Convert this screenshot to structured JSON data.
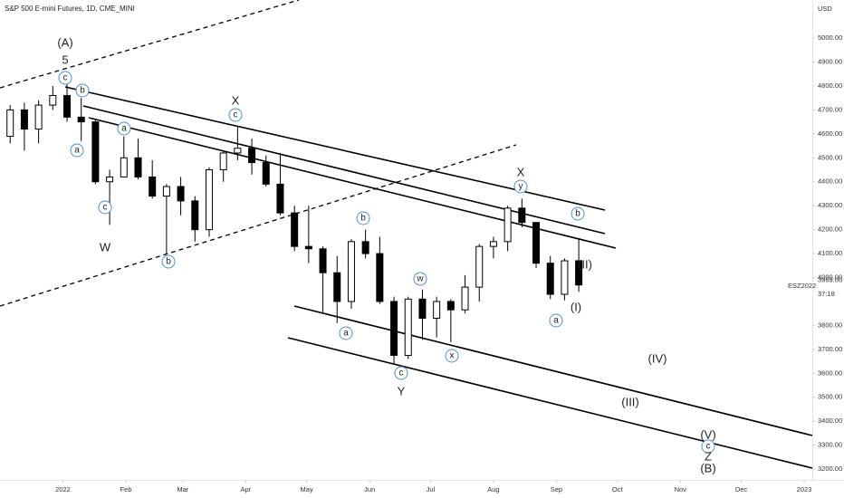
{
  "chart_data": {
    "type": "candlestick",
    "title": "S&P 500 E-mini Futures, 1D, CME_MINI",
    "currency": "USD",
    "symbol": "ESZ2022",
    "last_price": {
      "value": 3969,
      "label": "3969.00"
    },
    "countdown": "37:18",
    "grid": false,
    "up_color": "#ffffff",
    "down_color": "#000000",
    "wick_color": "#000000",
    "xlim": [
      "2021-12-01",
      "2023-01-05"
    ],
    "xticks": [
      {
        "value": "2022-01-01",
        "label": "2022"
      },
      {
        "value": "2022-02-01",
        "label": "Feb"
      },
      {
        "value": "2022-03-01",
        "label": "Mar"
      },
      {
        "value": "2022-04-01",
        "label": "Apr"
      },
      {
        "value": "2022-05-01",
        "label": "May"
      },
      {
        "value": "2022-06-01",
        "label": "Jun"
      },
      {
        "value": "2022-07-01",
        "label": "Jul"
      },
      {
        "value": "2022-08-01",
        "label": "Aug"
      },
      {
        "value": "2022-09-01",
        "label": "Sep"
      },
      {
        "value": "2022-10-01",
        "label": "Oct"
      },
      {
        "value": "2022-11-01",
        "label": "Nov"
      },
      {
        "value": "2022-12-01",
        "label": "Dec"
      },
      {
        "value": "2023-01-01",
        "label": "2023"
      }
    ],
    "ylim": [
      3155,
      5159
    ],
    "yticks": [
      {
        "value": 5000,
        "label": "5000.00"
      },
      {
        "value": 4900,
        "label": "4900.00"
      },
      {
        "value": 4800,
        "label": "4800.00"
      },
      {
        "value": 4700,
        "label": "4700.00"
      },
      {
        "value": 4600,
        "label": "4600.00"
      },
      {
        "value": 4500,
        "label": "4500.00"
      },
      {
        "value": 4400,
        "label": "4400.00"
      },
      {
        "value": 4300,
        "label": "4300.00"
      },
      {
        "value": 4200,
        "label": "4200.00"
      },
      {
        "value": 4100,
        "label": "4100.00"
      },
      {
        "value": 4000,
        "label": "4000.00"
      },
      {
        "value": 3800,
        "label": "3800.00"
      },
      {
        "value": 3700,
        "label": "3700.00"
      },
      {
        "value": 3600,
        "label": "3600.00"
      },
      {
        "value": 3500,
        "label": "3500.00"
      },
      {
        "value": 3400,
        "label": "3400.00"
      },
      {
        "value": 3300,
        "label": "3300.00"
      },
      {
        "value": 3200,
        "label": "3200.00"
      }
    ],
    "x": [
      "2021-12-06",
      "2021-12-13",
      "2021-12-20",
      "2021-12-27",
      "2022-01-03",
      "2022-01-10",
      "2022-01-17",
      "2022-01-24",
      "2022-01-31",
      "2022-02-07",
      "2022-02-14",
      "2022-02-21",
      "2022-02-28",
      "2022-03-07",
      "2022-03-14",
      "2022-03-21",
      "2022-03-28",
      "2022-04-04",
      "2022-04-11",
      "2022-04-18",
      "2022-04-25",
      "2022-05-02",
      "2022-05-09",
      "2022-05-16",
      "2022-05-23",
      "2022-05-30",
      "2022-06-06",
      "2022-06-13",
      "2022-06-20",
      "2022-06-27",
      "2022-07-04",
      "2022-07-11",
      "2022-07-18",
      "2022-07-25",
      "2022-08-01",
      "2022-08-08",
      "2022-08-15",
      "2022-08-22",
      "2022-08-29",
      "2022-09-05",
      "2022-09-12"
    ],
    "open": [
      4590,
      4700,
      4620,
      4720,
      4760,
      4670,
      4650,
      4400,
      4420,
      4500,
      4420,
      4340,
      4380,
      4320,
      4200,
      4450,
      4520,
      4540,
      4480,
      4390,
      4270,
      4130,
      4120,
      4020,
      3900,
      4150,
      4100,
      3900,
      3675,
      3910,
      3830,
      3900,
      3865,
      3960,
      4130,
      4150,
      4290,
      4230,
      4060,
      3930,
      4070
    ],
    "high": [
      4720,
      4730,
      4740,
      4800,
      4810,
      4750,
      4660,
      4450,
      4590,
      4580,
      4490,
      4390,
      4420,
      4340,
      4460,
      4530,
      4630,
      4580,
      4510,
      4520,
      4300,
      4300,
      4130,
      4090,
      4160,
      4200,
      4170,
      3920,
      3920,
      3950,
      3920,
      3910,
      4010,
      4140,
      4170,
      4300,
      4330,
      4230,
      4090,
      4080,
      4160
    ],
    "low": [
      4560,
      4530,
      4560,
      4700,
      4650,
      4570,
      4390,
      4220,
      4420,
      4410,
      4330,
      4100,
      4260,
      4150,
      4170,
      4400,
      4490,
      4430,
      4380,
      4260,
      4110,
      4060,
      3855,
      3810,
      3870,
      4080,
      3890,
      3640,
      3660,
      3740,
      3750,
      3730,
      3850,
      3900,
      4080,
      4110,
      4210,
      4040,
      3910,
      3905,
      3940
    ],
    "close": [
      4700,
      4620,
      4720,
      4760,
      4670,
      4650,
      4400,
      4420,
      4500,
      4420,
      4340,
      4380,
      4320,
      4200,
      4450,
      4520,
      4540,
      4480,
      4390,
      4270,
      4130,
      4120,
      4020,
      3900,
      4150,
      4100,
      3900,
      3675,
      3910,
      3830,
      3900,
      3865,
      3960,
      4130,
      4150,
      4290,
      4230,
      4060,
      3930,
      4070,
      3969
    ],
    "annotations": [
      {
        "text": "(A)",
        "color": "#2e7d32",
        "circled": false
      },
      {
        "text": "5",
        "color": "#b71c1c",
        "circled": false
      },
      {
        "text": "c",
        "color": "#4a90d9",
        "circled": true
      },
      {
        "text": "b",
        "color": "#4a90d9",
        "circled": true
      },
      {
        "text": "a",
        "color": "#4a90d9",
        "circled": true
      },
      {
        "text": "c",
        "color": "#4a90d9",
        "circled": true
      },
      {
        "text": "W",
        "color": "#b71c1c",
        "circled": false
      },
      {
        "text": "a",
        "color": "#4a90d9",
        "circled": true
      },
      {
        "text": "b",
        "color": "#4a90d9",
        "circled": true
      },
      {
        "text": "X",
        "color": "#b71c1c",
        "circled": false
      },
      {
        "text": "c",
        "color": "#4a90d9",
        "circled": true
      },
      {
        "text": "b",
        "color": "#4a90d9",
        "circled": true
      },
      {
        "text": "a",
        "color": "#4a90d9",
        "circled": true
      },
      {
        "text": "w",
        "color": "#4a90d9",
        "circled": true
      },
      {
        "text": "c",
        "color": "#4a90d9",
        "circled": true
      },
      {
        "text": "Y",
        "color": "#b71c1c",
        "circled": false
      },
      {
        "text": "x",
        "color": "#4a90d9",
        "circled": true
      },
      {
        "text": "X",
        "color": "#b71c1c",
        "circled": false
      },
      {
        "text": "y",
        "color": "#4a90d9",
        "circled": true
      },
      {
        "text": "b",
        "color": "#4a90d9",
        "circled": true
      },
      {
        "text": "a",
        "color": "#4a90d9",
        "circled": true
      },
      {
        "text": "(II)",
        "color": "#3cb371",
        "circled": false
      },
      {
        "text": "(I)",
        "color": "#3cb371",
        "circled": false
      },
      {
        "text": "(IV)",
        "color": "#3cb371",
        "circled": false
      },
      {
        "text": "(III)",
        "color": "#3cb371",
        "circled": false
      },
      {
        "text": "(V)",
        "color": "#3cb371",
        "circled": false
      },
      {
        "text": "c",
        "color": "#4a90d9",
        "circled": true
      },
      {
        "text": "Z",
        "color": "#b71c1c",
        "circled": false
      },
      {
        "text": "(B)",
        "color": "#2e7d32",
        "circled": false
      }
    ]
  }
}
